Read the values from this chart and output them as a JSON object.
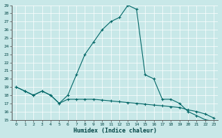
{
  "xlabel": "Humidex (Indice chaleur)",
  "background_color": "#c8e8e8",
  "line_color": "#006666",
  "xlim": [
    -0.5,
    23.5
  ],
  "ylim": [
    15,
    29
  ],
  "x_ticks": [
    0,
    1,
    2,
    3,
    4,
    5,
    6,
    7,
    8,
    9,
    10,
    11,
    12,
    13,
    14,
    15,
    16,
    17,
    18,
    19,
    20,
    21,
    22,
    23
  ],
  "y_ticks": [
    15,
    16,
    17,
    18,
    19,
    20,
    21,
    22,
    23,
    24,
    25,
    26,
    27,
    28,
    29
  ],
  "line1_x": [
    0,
    1,
    2,
    3,
    4,
    5,
    6,
    7,
    8,
    9,
    10,
    11,
    12,
    13,
    14,
    15,
    16,
    17,
    18,
    19,
    20,
    21,
    22,
    23
  ],
  "line1_y": [
    19,
    18.5,
    18,
    18.5,
    18,
    17,
    18,
    20.5,
    23,
    24.5,
    26,
    27,
    27.5,
    29,
    28.5,
    20.5,
    20,
    17.5,
    17.5,
    17,
    16,
    15.5,
    15,
    14.8
  ],
  "line2_x": [
    0,
    1,
    2,
    3,
    4,
    5,
    6,
    7,
    8,
    9,
    10,
    11,
    12,
    13,
    14,
    15,
    16,
    17,
    18,
    19,
    20,
    21,
    22,
    23
  ],
  "line2_y": [
    19,
    18.5,
    18,
    18.5,
    18,
    17,
    17.5,
    17.5,
    17.5,
    17.5,
    17.4,
    17.3,
    17.2,
    17.1,
    17.0,
    16.9,
    16.8,
    16.7,
    16.6,
    16.5,
    16.2,
    16.0,
    15.7,
    15.2
  ]
}
